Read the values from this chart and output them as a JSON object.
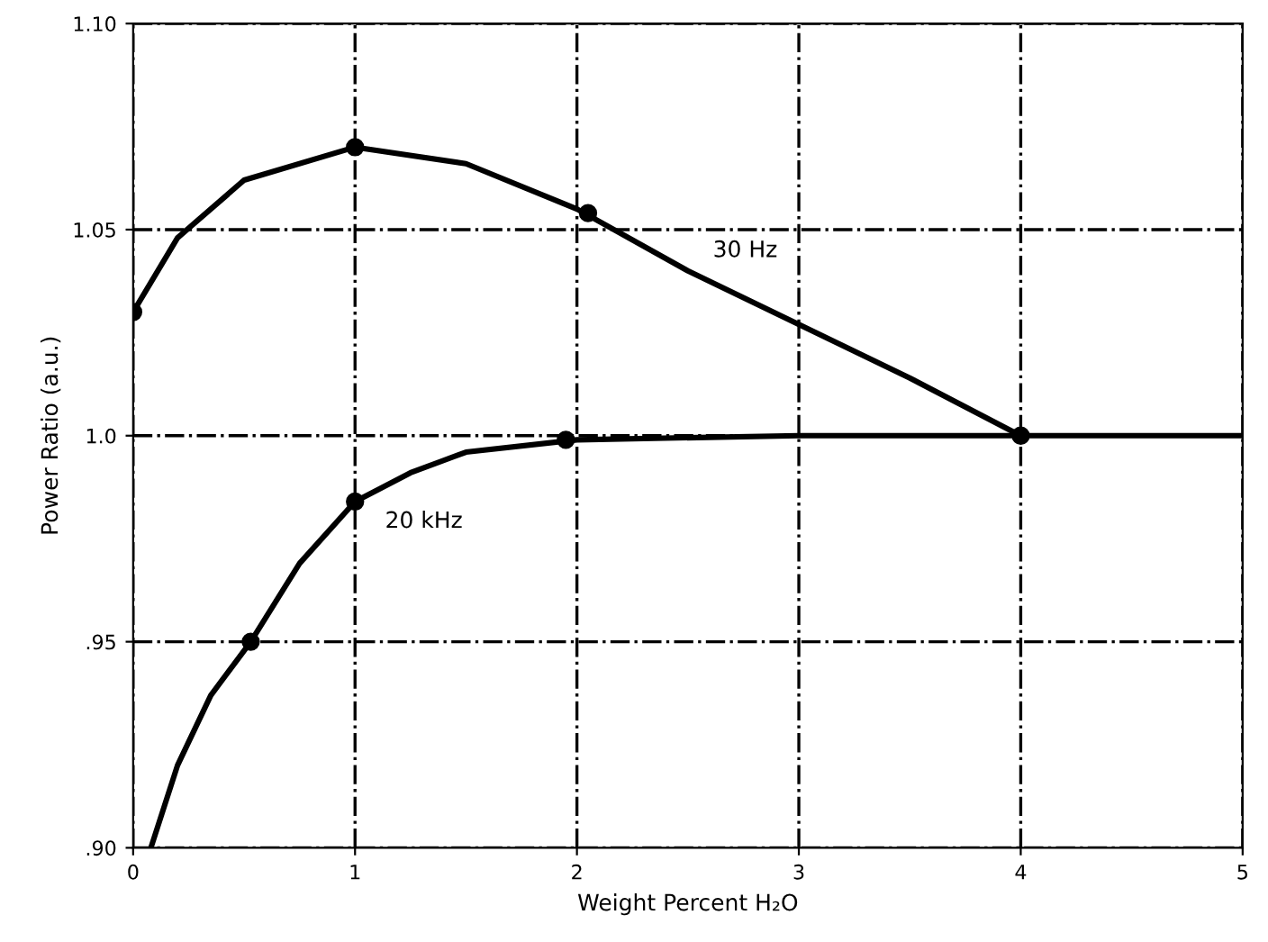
{
  "chart_data": {
    "type": "line",
    "xlabel": "Weight Percent H₂O",
    "ylabel": "Power Ratio (a.u.)",
    "series": [
      {
        "name": "30 Hz",
        "color": "#000000",
        "x": [
          0,
          0.2,
          0.5,
          1.0,
          1.5,
          2.0,
          2.5,
          3.0,
          3.5,
          4.0
        ],
        "values": [
          1.03,
          1.048,
          1.062,
          1.07,
          1.066,
          1.055,
          1.04,
          1.027,
          1.014,
          1.0
        ]
      },
      {
        "type": "scatter",
        "marker": "circle",
        "color": "#000000",
        "x": [
          0,
          1.0,
          2.05,
          4.0
        ],
        "values": [
          1.03,
          1.07,
          1.054,
          1.0
        ]
      },
      {
        "name": "20 kHz",
        "color": "#000000",
        "x": [
          0.08,
          0.2,
          0.35,
          0.53,
          0.75,
          1.0,
          1.25,
          1.5,
          2.0,
          3.0,
          4.0,
          5.0
        ],
        "values": [
          0.9,
          0.92,
          0.937,
          0.95,
          0.969,
          0.984,
          0.991,
          0.996,
          0.999,
          1.0,
          1.0,
          1.0
        ]
      },
      {
        "type": "scatter",
        "marker": "circle",
        "color": "#000000",
        "x": [
          0.53,
          1.0,
          1.95
        ],
        "values": [
          0.95,
          0.984,
          0.999
        ]
      }
    ],
    "xlim": [
      0,
      5
    ],
    "xticks": [
      0,
      1,
      2,
      3,
      4,
      5
    ],
    "ylim": [
      0.9,
      1.1
    ],
    "yticks": [
      {
        "value": 0.9,
        "label": ".90"
      },
      {
        "value": 0.95,
        "label": ".95"
      },
      {
        "value": 1.0,
        "label": "1.0"
      },
      {
        "value": 1.05,
        "label": "1.05"
      },
      {
        "value": 1.1,
        "label": "1.10"
      }
    ],
    "grid": true,
    "line_style": "solid"
  }
}
